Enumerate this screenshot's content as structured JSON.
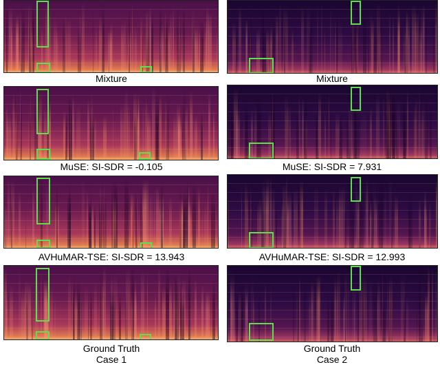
{
  "case1": {
    "label": "Case 1",
    "panels": [
      {
        "caption": "Mixture"
      },
      {
        "caption": "MuSE:  SI-SDR = -0.105"
      },
      {
        "caption": "AVHuMAR-TSE: SI-SDR = 13.943"
      },
      {
        "caption": "Ground Truth"
      }
    ]
  },
  "case2": {
    "label": "Case 2",
    "panels": [
      {
        "caption": "Mixture"
      },
      {
        "caption": "MuSE: SI-SDR = 7.931"
      },
      {
        "caption": "AVHuMAR-TSE: SI-SDR = 12.993"
      },
      {
        "caption": "Ground Truth"
      }
    ]
  }
}
